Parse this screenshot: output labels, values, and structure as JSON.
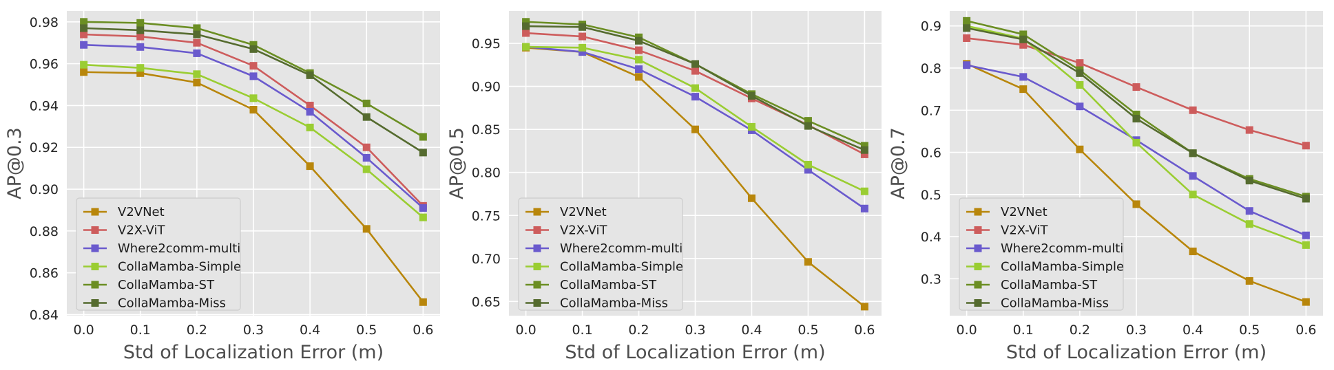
{
  "chart_data": [
    {
      "type": "line",
      "title": "",
      "xlabel": "Std of Localization Error (m)",
      "ylabel": "AP@0.3",
      "xlim": [
        -0.03,
        0.63
      ],
      "ylim": [
        0.8395,
        0.9852
      ],
      "yticks": [
        "0.84",
        "0.86",
        "0.88",
        "0.90",
        "0.92",
        "0.94",
        "0.96",
        "0.98"
      ],
      "x": [
        0.0,
        0.1,
        0.2,
        0.3,
        0.4,
        0.5,
        0.6
      ],
      "xticks": [
        "0.0",
        "0.1",
        "0.2",
        "0.3",
        "0.4",
        "0.5",
        "0.6"
      ],
      "legend": "lower-left",
      "grid": true,
      "series": [
        {
          "name": "V2VNet",
          "color": "#b8860b",
          "values": [
            0.956,
            0.9555,
            0.951,
            0.938,
            0.911,
            0.881,
            0.846
          ]
        },
        {
          "name": "V2X-ViT",
          "color": "#cd5c5c",
          "values": [
            0.974,
            0.973,
            0.97,
            0.959,
            0.94,
            0.92,
            0.892
          ]
        },
        {
          "name": "Where2comm-multi",
          "color": "#6a5acd",
          "values": [
            0.969,
            0.968,
            0.965,
            0.954,
            0.937,
            0.915,
            0.891
          ]
        },
        {
          "name": "CollaMamba-Simple",
          "color": "#9acd32",
          "values": [
            0.9595,
            0.958,
            0.955,
            0.9435,
            0.9295,
            0.9095,
            0.8865
          ]
        },
        {
          "name": "CollaMamba-ST",
          "color": "#6b8e23",
          "values": [
            0.98,
            0.9795,
            0.977,
            0.969,
            0.9555,
            0.941,
            0.925
          ]
        },
        {
          "name": "CollaMamba-Miss",
          "color": "#556b2f",
          "values": [
            0.977,
            0.976,
            0.974,
            0.967,
            0.9545,
            0.9345,
            0.9175
          ]
        }
      ]
    },
    {
      "type": "line",
      "title": "",
      "xlabel": "Std of Localization Error (m)",
      "ylabel": "AP@0.5",
      "xlim": [
        -0.03,
        0.63
      ],
      "ylim": [
        0.6335,
        0.9876
      ],
      "yticks": [
        "0.65",
        "0.70",
        "0.75",
        "0.80",
        "0.85",
        "0.90",
        "0.95"
      ],
      "x": [
        0.0,
        0.1,
        0.2,
        0.3,
        0.4,
        0.5,
        0.6
      ],
      "xticks": [
        "0.0",
        "0.1",
        "0.2",
        "0.3",
        "0.4",
        "0.5",
        "0.6"
      ],
      "legend": "lower-left",
      "grid": true,
      "series": [
        {
          "name": "V2VNet",
          "color": "#b8860b",
          "values": [
            0.945,
            0.94,
            0.911,
            0.85,
            0.77,
            0.696,
            0.644
          ]
        },
        {
          "name": "V2X-ViT",
          "color": "#cd5c5c",
          "values": [
            0.962,
            0.958,
            0.942,
            0.918,
            0.886,
            0.855,
            0.821
          ]
        },
        {
          "name": "Where2comm-multi",
          "color": "#6a5acd",
          "values": [
            0.946,
            0.94,
            0.92,
            0.888,
            0.849,
            0.803,
            0.758
          ]
        },
        {
          "name": "CollaMamba-Simple",
          "color": "#9acd32",
          "values": [
            0.946,
            0.945,
            0.931,
            0.898,
            0.853,
            0.809,
            0.778
          ]
        },
        {
          "name": "CollaMamba-ST",
          "color": "#6b8e23",
          "values": [
            0.975,
            0.972,
            0.957,
            0.926,
            0.891,
            0.86,
            0.831
          ]
        },
        {
          "name": "CollaMamba-Miss",
          "color": "#556b2f",
          "values": [
            0.97,
            0.969,
            0.953,
            0.926,
            0.889,
            0.854,
            0.826
          ]
        }
      ]
    },
    {
      "type": "line",
      "title": "",
      "xlabel": "Std of Localization Error (m)",
      "ylabel": "AP@0.7",
      "xlim": [
        -0.03,
        0.63
      ],
      "ylim": [
        0.2125,
        0.9354
      ],
      "yticks": [
        "0.3",
        "0.4",
        "0.5",
        "0.6",
        "0.7",
        "0.8",
        "0.9"
      ],
      "x": [
        0.0,
        0.1,
        0.2,
        0.3,
        0.4,
        0.5,
        0.6
      ],
      "xticks": [
        "0.0",
        "0.1",
        "0.2",
        "0.3",
        "0.4",
        "0.5",
        "0.6"
      ],
      "legend": "lower-left",
      "grid": true,
      "series": [
        {
          "name": "V2VNet",
          "color": "#b8860b",
          "values": [
            0.81,
            0.75,
            0.607,
            0.477,
            0.365,
            0.295,
            0.245
          ]
        },
        {
          "name": "V2X-ViT",
          "color": "#cd5c5c",
          "values": [
            0.871,
            0.855,
            0.812,
            0.755,
            0.7,
            0.653,
            0.616
          ]
        },
        {
          "name": "Where2comm-multi",
          "color": "#6a5acd",
          "values": [
            0.807,
            0.779,
            0.709,
            0.629,
            0.544,
            0.461,
            0.403
          ]
        },
        {
          "name": "CollaMamba-Simple",
          "color": "#9acd32",
          "values": [
            0.9,
            0.87,
            0.76,
            0.623,
            0.5,
            0.43,
            0.38
          ]
        },
        {
          "name": "CollaMamba-ST",
          "color": "#6b8e23",
          "values": [
            0.912,
            0.88,
            0.795,
            0.69,
            0.598,
            0.537,
            0.495
          ]
        },
        {
          "name": "CollaMamba-Miss",
          "color": "#556b2f",
          "values": [
            0.895,
            0.868,
            0.788,
            0.68,
            0.598,
            0.533,
            0.49
          ]
        }
      ]
    }
  ]
}
